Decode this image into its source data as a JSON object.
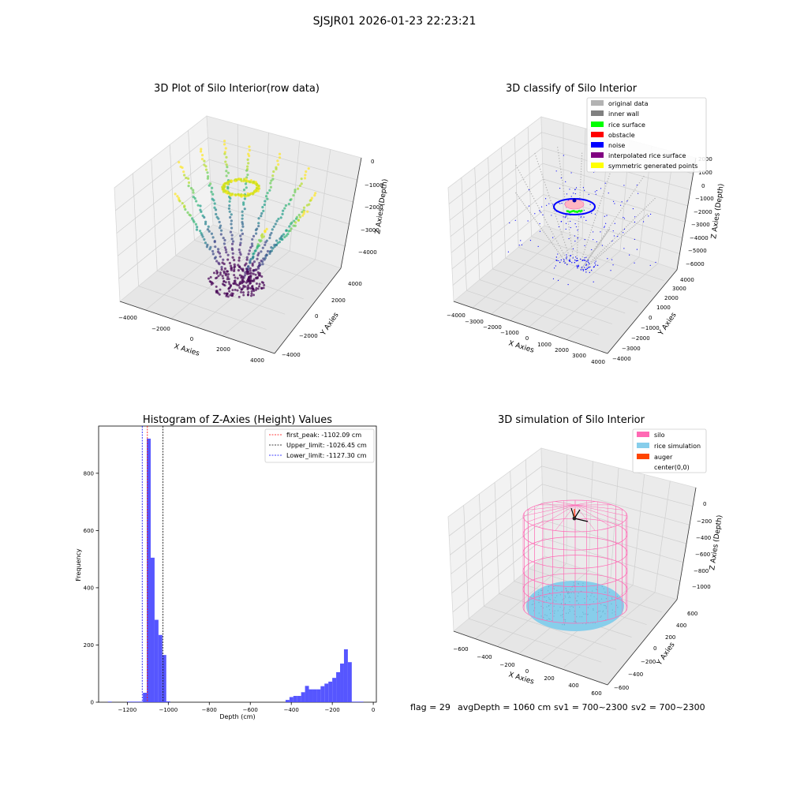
{
  "figure": {
    "suptitle": "SJSJR01 2026-01-23 22:23:21",
    "status": {
      "flag": "flag = 29",
      "avg": "avgDepth = 1060 cm",
      "sv1": "sv1 = 700~2300",
      "sv2": "sv2 = 700~2300"
    }
  },
  "colors": {
    "original": "#b3b3b3",
    "inner_wall": "#808080",
    "rice_surface": "#00ff00",
    "obstacle": "#ff0000",
    "noise": "#0000ff",
    "interpolated": "#800080",
    "symmetric": "#ffff00",
    "silo": "#ff69b4",
    "rice_sim": "#87ceeb",
    "auger": "#ff4500",
    "hist_bar": "#4d4dff"
  },
  "chart_data": [
    {
      "type": "scatter",
      "title": "3D Plot of Silo Interior(row data)",
      "xlabel": "X Axies",
      "ylabel": "Y Axies",
      "zlabel": "Z Axies (Depth)",
      "xticks": [
        "−4000",
        "−2000",
        "0",
        "2000",
        "4000"
      ],
      "yticks": [
        "−4000",
        "−2000",
        "0",
        "2000",
        "4000"
      ],
      "zticks": [
        "0",
        "−1000",
        "−2000",
        "−3000",
        "−4000"
      ],
      "xlim": [
        -4500,
        4500
      ],
      "ylim": [
        -4500,
        4500
      ],
      "zlim": [
        -4700,
        0
      ]
    },
    {
      "type": "scatter",
      "title": "3D classify of Silo Interior",
      "xlabel": "X Axies",
      "ylabel": "Y Axies",
      "zlabel": "Z Axies (Depth)",
      "xticks": [
        "−4000",
        "−3000",
        "−2000",
        "−1000",
        "0",
        "1000",
        "2000",
        "3000",
        "4000"
      ],
      "yticks": [
        "−4000",
        "−3000",
        "−2000",
        "−1000",
        "0",
        "1000",
        "2000",
        "3000",
        "4000"
      ],
      "zticks": [
        "2000",
        "1000",
        "0",
        "−1000",
        "−2000",
        "−3000",
        "−4000",
        "−5000",
        "−6000"
      ],
      "legend": [
        "original data",
        "inner wall",
        "rice surface",
        "obstacle",
        "noise",
        "interpolated rice surface",
        "symmetric generated points"
      ],
      "legend_loc": "upper-right"
    },
    {
      "type": "bar",
      "title": "Histogram of Z-Axies (Height) Values",
      "xlabel": "Depth (cm)",
      "ylabel": "Frequency",
      "xlim": [
        -1340,
        15
      ],
      "ylim": [
        0,
        965
      ],
      "xticks": [
        -1200,
        -1000,
        -800,
        -600,
        -400,
        -200,
        0
      ],
      "xtick_labels": [
        "−1200",
        "−1000",
        "−800",
        "−600",
        "−400",
        "−200",
        "0"
      ],
      "yticks": [
        0,
        200,
        400,
        600,
        800
      ],
      "yticks_labels": [
        "0",
        "200",
        "400",
        "600",
        "800"
      ],
      "bin_width": 19,
      "bin_starts": [
        -1295,
        -1200,
        -1181,
        -1162,
        -1143,
        -1124,
        -1105,
        -1086,
        -1067,
        -1048,
        -1029,
        -1010,
        -428,
        -409,
        -390,
        -371,
        -352,
        -333,
        -314,
        -295,
        -276,
        -257,
        -238,
        -219,
        -200,
        -181,
        -162,
        -143,
        -124,
        -105,
        -86,
        -67
      ],
      "counts": [
        2,
        2,
        2,
        2,
        2,
        33,
        921,
        505,
        288,
        235,
        165,
        3,
        8,
        18,
        22,
        22,
        35,
        57,
        45,
        45,
        45,
        56,
        65,
        72,
        85,
        105,
        135,
        185,
        140,
        2,
        2,
        2
      ],
      "vlines": [
        {
          "label": "first_peak: -1102.09 cm",
          "x": -1102.09,
          "color": "#ff0000"
        },
        {
          "label": "Upper_limit: -1026.45 cm",
          "x": -1026.45,
          "color": "#000000"
        },
        {
          "label": "Lower_limit: -1127.30 cm",
          "x": -1127.3,
          "color": "#0000ff"
        }
      ],
      "legend_loc": "upper-right"
    },
    {
      "type": "scatter",
      "title": "3D simulation of Silo Interior",
      "xlabel": "X Axies",
      "ylabel": "Y Axies",
      "zlabel": "Z Axies (Depth)",
      "xticks": [
        "−600",
        "−400",
        "−200",
        "0",
        "200",
        "400",
        "600"
      ],
      "yticks": [
        "−600",
        "−400",
        "−200",
        "0",
        "200",
        "400",
        "600"
      ],
      "zticks": [
        "0",
        "−200",
        "−400",
        "−600",
        "−800",
        "−1000"
      ],
      "legend": [
        "silo",
        "rice simulation",
        "auger",
        "center(0,0)"
      ],
      "legend_loc": "upper-right"
    }
  ]
}
